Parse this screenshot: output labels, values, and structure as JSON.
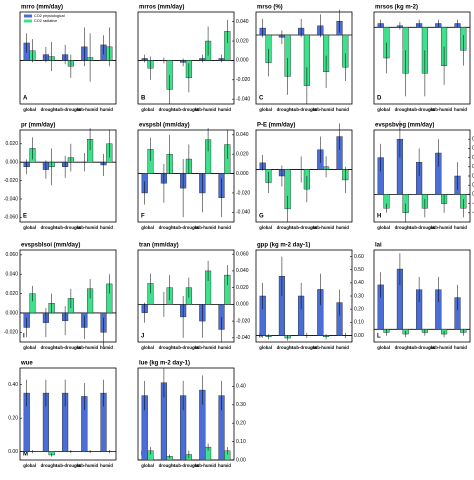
{
  "chart_data": [
    {
      "type": "bar",
      "title": "mrro (mm/day)",
      "label": "A",
      "legend": "upper left",
      "categories": [
        "global",
        "drought",
        "sub-drought",
        "sub-humid",
        "humid"
      ],
      "series": [
        {
          "name": "CO2 physiological",
          "color": "#4a6ed6",
          "values": [
            0.018,
            0.006,
            0.006,
            0.014,
            0.016
          ],
          "errors": [
            0.01,
            0.008,
            0.01,
            0.02,
            0.01
          ]
        },
        {
          "name": "CO2 radiative",
          "color": "#3fe08c",
          "values": [
            0.01,
            0.004,
            -0.006,
            0.003,
            0.014
          ],
          "errors": [
            0.012,
            0.015,
            0.012,
            0.025,
            0.02
          ]
        }
      ],
      "ylim": [
        -0.045,
        0.05
      ]
    },
    {
      "type": "bar",
      "title": "mrros (mm/day)",
      "label": "B",
      "categories": [
        "global",
        "drought",
        "sub-drought",
        "sub-humid",
        "humid"
      ],
      "series": [
        {
          "color": "#4a6ed6",
          "values": [
            0.002,
            0.0,
            -0.002,
            0.002,
            0.002
          ],
          "errors": [
            0.004,
            0.003,
            0.004,
            0.004,
            0.004
          ]
        },
        {
          "color": "#3fe08c",
          "values": [
            -0.008,
            -0.03,
            -0.018,
            0.02,
            0.03
          ],
          "errors": [
            0.012,
            0.015,
            0.015,
            0.015,
            0.012
          ]
        }
      ],
      "ylim": [
        -0.045,
        0.05
      ],
      "yticks": [
        {
          "value": 0.04,
          "label": "0.040"
        },
        {
          "value": 0.02,
          "label": "0.020"
        },
        {
          "value": 0,
          "label": "0.000"
        },
        {
          "value": -0.02,
          "label": "-0.020"
        },
        {
          "value": -0.04,
          "label": "-0.040"
        }
      ],
      "axis_side": "right"
    },
    {
      "type": "bar",
      "title": "mrso (%)",
      "label": "C",
      "categories": [
        "global",
        "drought",
        "sub-drought",
        "sub-humid",
        "humid"
      ],
      "series": [
        {
          "color": "#4a6ed6",
          "values": [
            0.3,
            -0.1,
            0.3,
            0.4,
            0.6
          ],
          "errors": [
            0.4,
            0.3,
            0.4,
            0.5,
            0.5
          ]
        },
        {
          "color": "#3fe08c",
          "values": [
            -1.2,
            -1.8,
            -2.2,
            -1.6,
            -1.4
          ],
          "errors": [
            0.6,
            0.8,
            0.8,
            0.7,
            0.6
          ]
        }
      ],
      "ylim": [
        -3,
        1
      ]
    },
    {
      "type": "bar",
      "title": "mrsos (kg m-2)",
      "label": "D",
      "categories": [
        "global",
        "drought",
        "sub-drought",
        "sub-humid",
        "humid"
      ],
      "series": [
        {
          "color": "#4a6ed6",
          "values": [
            0.05,
            0.02,
            0.05,
            0.05,
            0.05
          ],
          "errors": [
            0.05,
            0.05,
            0.05,
            0.05,
            0.05
          ]
        },
        {
          "color": "#3fe08c",
          "values": [
            -0.4,
            -0.6,
            -0.6,
            -0.5,
            -0.3
          ],
          "errors": [
            0.2,
            0.3,
            0.3,
            0.25,
            0.2
          ]
        }
      ],
      "ylim": [
        -1,
        0.2
      ]
    },
    {
      "type": "bar",
      "title": "pr (mm/day)",
      "label": "E",
      "categories": [
        "global",
        "drought",
        "sub-drought",
        "sub-humid",
        "humid"
      ],
      "series": [
        {
          "color": "#4a6ed6",
          "values": [
            -0.005,
            -0.008,
            -0.005,
            0.0,
            -0.003
          ],
          "errors": [
            0.008,
            0.01,
            0.012,
            0.01,
            0.012
          ]
        },
        {
          "color": "#3fe08c",
          "values": [
            0.015,
            -0.005,
            0.005,
            0.025,
            0.02
          ],
          "errors": [
            0.012,
            0.02,
            0.015,
            0.012,
            0.015
          ]
        }
      ],
      "ylim": [
        -0.065,
        0.035
      ],
      "yticks": [
        {
          "value": 0.02,
          "label": "0.020"
        },
        {
          "value": 0,
          "label": "0.000"
        },
        {
          "value": -0.02,
          "label": "-0.020"
        },
        {
          "value": -0.04,
          "label": "-0.040"
        },
        {
          "value": -0.06,
          "label": "-0.060"
        }
      ],
      "axis_side": "left"
    },
    {
      "type": "bar",
      "title": "evspsbl (mm/day)",
      "label": "F",
      "categories": [
        "global",
        "drought",
        "sub-drought",
        "sub-humid",
        "humid"
      ],
      "series": [
        {
          "color": "#4a6ed6",
          "values": [
            -0.02,
            -0.01,
            -0.015,
            -0.02,
            -0.025
          ],
          "errors": [
            0.012,
            0.02,
            0.03,
            0.02,
            0.02
          ]
        },
        {
          "color": "#3fe08c",
          "values": [
            0.025,
            0.02,
            0.015,
            0.035,
            0.03
          ],
          "errors": [
            0.012,
            0.02,
            0.015,
            0.012,
            0.015
          ]
        }
      ],
      "ylim": [
        -0.05,
        0.045
      ],
      "yticks": [
        {
          "value": 0.04,
          "label": "0.040"
        },
        {
          "value": 0.02,
          "label": "0.020"
        },
        {
          "value": 0,
          "label": "0.000"
        },
        {
          "value": -0.02,
          "label": "-0.020"
        },
        {
          "value": -0.04,
          "label": "-0.040"
        }
      ],
      "axis_side": "right"
    },
    {
      "type": "bar",
      "title": "P-E (mm/day)",
      "label": "G",
      "categories": [
        "global",
        "drought",
        "sub-drought",
        "sub-humid",
        "humid"
      ],
      "series": [
        {
          "color": "#4a6ed6",
          "values": [
            0.005,
            -0.005,
            0.0,
            0.015,
            0.025
          ],
          "errors": [
            0.006,
            0.008,
            0.01,
            0.01,
            0.01
          ]
        },
        {
          "color": "#3fe08c",
          "values": [
            -0.01,
            -0.03,
            -0.015,
            0.002,
            -0.008
          ],
          "errors": [
            0.008,
            0.01,
            0.01,
            0.008,
            0.01
          ]
        }
      ],
      "ylim": [
        -0.04,
        0.03
      ]
    },
    {
      "type": "bar",
      "title": "evspsbveg (mm/day)",
      "label": "H",
      "categories": [
        "global",
        "drought",
        "sub-drought",
        "sub-humid",
        "humid"
      ],
      "series": [
        {
          "color": "#4a6ed6",
          "values": [
            0.08,
            0.12,
            0.07,
            0.09,
            0.04
          ],
          "errors": [
            0.03,
            0.04,
            0.03,
            0.03,
            0.03
          ]
        },
        {
          "color": "#3fe08c",
          "values": [
            -0.03,
            -0.04,
            -0.03,
            -0.02,
            -0.03
          ],
          "errors": [
            0.01,
            0.02,
            0.02,
            0.02,
            0.02
          ]
        }
      ],
      "ylim": [
        -0.06,
        0.14
      ],
      "yticks": [
        {
          "value": 0.12,
          "label": "0.12"
        },
        {
          "value": 0.1,
          "label": "0.10"
        },
        {
          "value": 0.08,
          "label": "0.08"
        },
        {
          "value": 0.06,
          "label": "0.06"
        },
        {
          "value": 0.04,
          "label": "0.04"
        },
        {
          "value": 0.02,
          "label": "0.02"
        },
        {
          "value": 0,
          "label": "0.00"
        },
        {
          "value": -0.02,
          "label": "-0.02"
        },
        {
          "value": -0.04,
          "label": "-0.04"
        }
      ],
      "axis_side": "right"
    },
    {
      "type": "bar",
      "title": "evspsblsoi (mm/day)",
      "label": "I",
      "categories": [
        "global",
        "drought",
        "sub-drought",
        "sub-humid",
        "humid"
      ],
      "series": [
        {
          "color": "#4a6ed6",
          "values": [
            -0.015,
            -0.01,
            -0.008,
            -0.015,
            -0.02
          ],
          "errors": [
            0.01,
            0.015,
            0.015,
            0.012,
            0.015
          ]
        },
        {
          "color": "#3fe08c",
          "values": [
            0.02,
            0.01,
            0.015,
            0.025,
            0.03
          ],
          "errors": [
            0.008,
            0.01,
            0.01,
            0.01,
            0.01
          ]
        }
      ],
      "ylim": [
        -0.03,
        0.065
      ],
      "yticks": [
        {
          "value": 0.06,
          "label": "0.060"
        },
        {
          "value": 0.04,
          "label": "0.040"
        },
        {
          "value": 0.02,
          "label": "0.020"
        },
        {
          "value": 0,
          "label": "0.000"
        },
        {
          "value": -0.02,
          "label": "-0.020"
        }
      ],
      "axis_side": "left"
    },
    {
      "type": "bar",
      "title": "tran (mm/day)",
      "label": "J",
      "categories": [
        "global",
        "drought",
        "sub-drought",
        "sub-humid",
        "humid"
      ],
      "series": [
        {
          "color": "#4a6ed6",
          "values": [
            -0.01,
            0.0,
            -0.015,
            -0.02,
            -0.03
          ],
          "errors": [
            0.012,
            0.015,
            0.025,
            0.02,
            0.015
          ]
        },
        {
          "color": "#3fe08c",
          "values": [
            0.025,
            0.02,
            0.02,
            0.04,
            0.035
          ],
          "errors": [
            0.012,
            0.015,
            0.012,
            0.012,
            0.012
          ]
        }
      ],
      "ylim": [
        -0.045,
        0.065
      ],
      "yticks": [
        {
          "value": 0.06,
          "label": "0.060"
        },
        {
          "value": 0.04,
          "label": "0.040"
        },
        {
          "value": 0.02,
          "label": "0.020"
        },
        {
          "value": 0,
          "label": "0.000"
        },
        {
          "value": -0.02,
          "label": "-0.020"
        },
        {
          "value": -0.04,
          "label": "-0.040"
        }
      ],
      "axis_side": "right"
    },
    {
      "type": "bar",
      "title": "gpp (kg m-2 day-1)",
      "label": "K",
      "categories": [
        "global",
        "drought",
        "sub-drought",
        "sub-humid",
        "humid"
      ],
      "series": [
        {
          "color": "#4a6ed6",
          "values": [
            0.3,
            0.45,
            0.3,
            0.35,
            0.25
          ],
          "errors": [
            0.1,
            0.15,
            0.1,
            0.12,
            0.1
          ]
        },
        {
          "color": "#3fe08c",
          "values": [
            -0.01,
            -0.02,
            0.0,
            -0.01,
            0.0
          ],
          "errors": [
            0.02,
            0.02,
            0.02,
            0.02,
            0.02
          ]
        }
      ],
      "ylim": [
        -0.05,
        0.65
      ],
      "yticks": [
        {
          "value": 0.6,
          "label": "0.60"
        },
        {
          "value": 0.5,
          "label": "0.50"
        },
        {
          "value": 0.4,
          "label": "0.40"
        },
        {
          "value": 0.3,
          "label": "0.30"
        },
        {
          "value": 0.2,
          "label": "0.20"
        },
        {
          "value": 0.1,
          "label": "0.10"
        },
        {
          "value": 0,
          "label": "0.00"
        }
      ],
      "axis_side": "right"
    },
    {
      "type": "bar",
      "title": "lai",
      "label": "L",
      "categories": [
        "global",
        "drought",
        "sub-drought",
        "sub-humid",
        "humid"
      ],
      "series": [
        {
          "color": "#4a6ed6",
          "values": [
            0.28,
            0.38,
            0.25,
            0.25,
            0.2
          ],
          "errors": [
            0.08,
            0.1,
            0.08,
            0.08,
            0.08
          ]
        },
        {
          "color": "#3fe08c",
          "values": [
            -0.02,
            -0.03,
            -0.02,
            -0.03,
            -0.02
          ],
          "errors": [
            0.02,
            0.02,
            0.02,
            0.02,
            0.02
          ]
        }
      ],
      "ylim": [
        -0.08,
        0.5
      ]
    },
    {
      "type": "bar",
      "title": "wue",
      "label": "M",
      "categories": [
        "global",
        "drought",
        "sub-drought",
        "sub-humid",
        "humid"
      ],
      "series": [
        {
          "color": "#4a6ed6",
          "values": [
            0.35,
            0.35,
            0.35,
            0.33,
            0.35
          ],
          "errors": [
            0.08,
            0.08,
            0.08,
            0.08,
            0.08
          ]
        },
        {
          "color": "#3fe08c",
          "values": [
            0.0,
            -0.02,
            0.0,
            0.0,
            0.0
          ],
          "errors": [
            0.01,
            0.01,
            0.01,
            0.01,
            0.01
          ]
        }
      ],
      "ylim": [
        -0.05,
        0.5
      ],
      "yticks": [
        {
          "value": 0.4,
          "label": "0.40"
        },
        {
          "value": 0.2,
          "label": "0.20"
        },
        {
          "value": 0,
          "label": "0.00"
        }
      ],
      "axis_side": "left"
    },
    {
      "type": "bar",
      "title": "lue (kg m-2 day-1)",
      "label": "N",
      "categories": [
        "global",
        "drought",
        "sub-drought",
        "sub-humid",
        "humid"
      ],
      "series": [
        {
          "color": "#4a6ed6",
          "values": [
            0.35,
            0.42,
            0.35,
            0.38,
            0.35
          ],
          "errors": [
            0.08,
            0.08,
            0.08,
            0.08,
            0.08
          ]
        },
        {
          "color": "#3fe08c",
          "values": [
            0.05,
            0.02,
            0.03,
            0.07,
            0.05
          ],
          "errors": [
            0.02,
            0.01,
            0.02,
            0.02,
            0.02
          ]
        }
      ],
      "ylim": [
        0,
        0.5
      ],
      "yticks": [
        {
          "value": 0.4,
          "label": "0.40"
        },
        {
          "value": 0.3,
          "label": "0.30"
        },
        {
          "value": 0.2,
          "label": "0.20"
        },
        {
          "value": 0.1,
          "label": "0.10"
        },
        {
          "value": 0,
          "label": "0.00"
        }
      ],
      "axis_side": "right"
    }
  ]
}
